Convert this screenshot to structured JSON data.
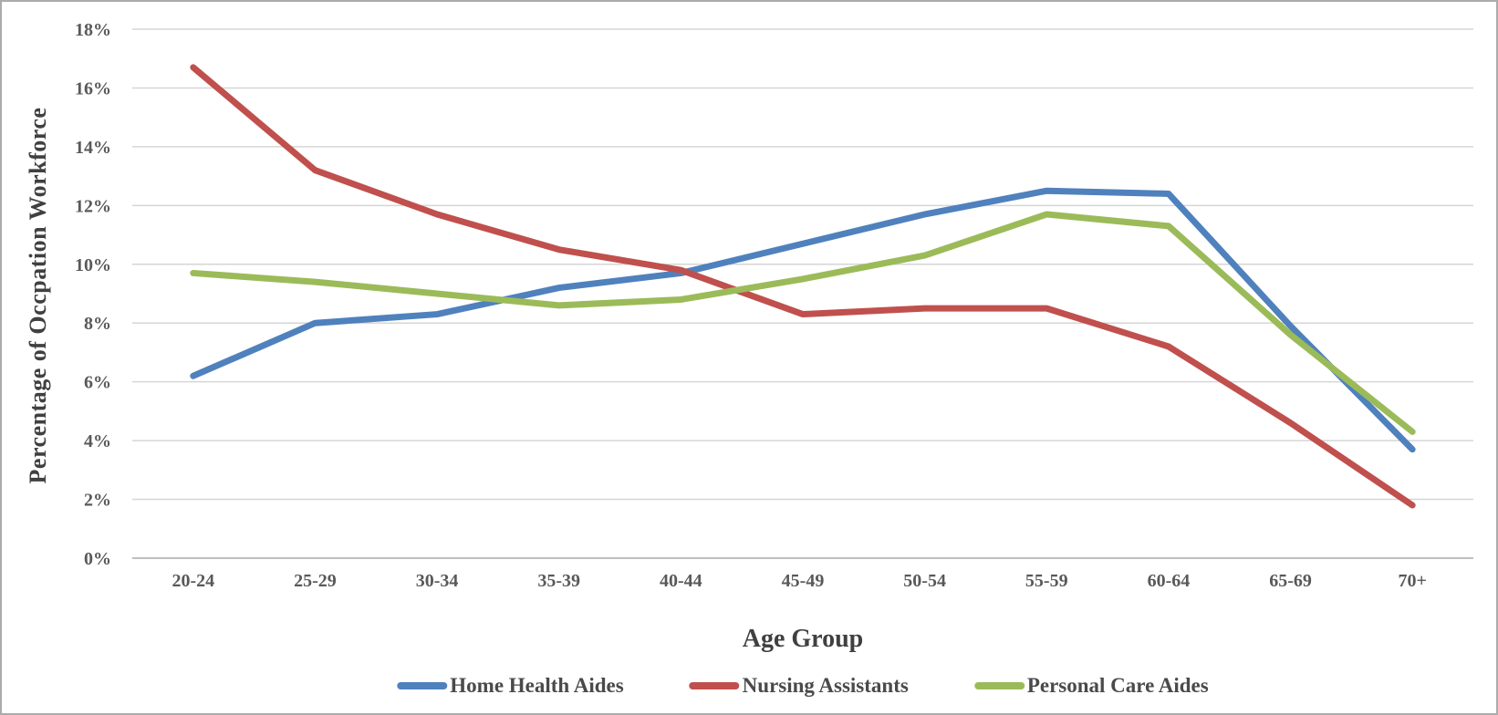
{
  "chart_data": {
    "type": "line",
    "title": "",
    "xlabel": "Age Group",
    "ylabel": "Percentage of Occpation Workforce",
    "categories": [
      "20-24",
      "25-29",
      "30-34",
      "35-39",
      "40-44",
      "45-49",
      "50-54",
      "55-59",
      "60-64",
      "65-69",
      "70+"
    ],
    "series": [
      {
        "name": "Home Health Aides",
        "color": "#4F81BD",
        "values": [
          6.2,
          8.0,
          8.3,
          9.2,
          9.7,
          10.7,
          11.7,
          12.5,
          12.4,
          7.9,
          3.7
        ]
      },
      {
        "name": "Nursing Assistants",
        "color": "#C0504D",
        "values": [
          16.7,
          13.2,
          11.7,
          10.5,
          9.8,
          8.3,
          8.5,
          8.5,
          7.2,
          4.6,
          1.8
        ]
      },
      {
        "name": "Personal Care Aides",
        "color": "#9BBB59",
        "values": [
          9.7,
          9.4,
          9.0,
          8.6,
          8.8,
          9.5,
          10.3,
          11.7,
          11.3,
          7.6,
          4.3
        ]
      }
    ],
    "ylim": [
      0,
      18
    ],
    "ytick_step": 2,
    "ytick_labels": [
      "0%",
      "2%",
      "4%",
      "6%",
      "8%",
      "10%",
      "12%",
      "14%",
      "16%",
      "18%"
    ],
    "grid": true,
    "legend_position": "bottom",
    "colors": {
      "gridline": "#D6D6D6",
      "axis_line": "#BFBFBF",
      "tick_text": "#595959",
      "title_text": "#404040",
      "frame_border": "#ABABAB",
      "background": "#FFFFFF"
    }
  }
}
